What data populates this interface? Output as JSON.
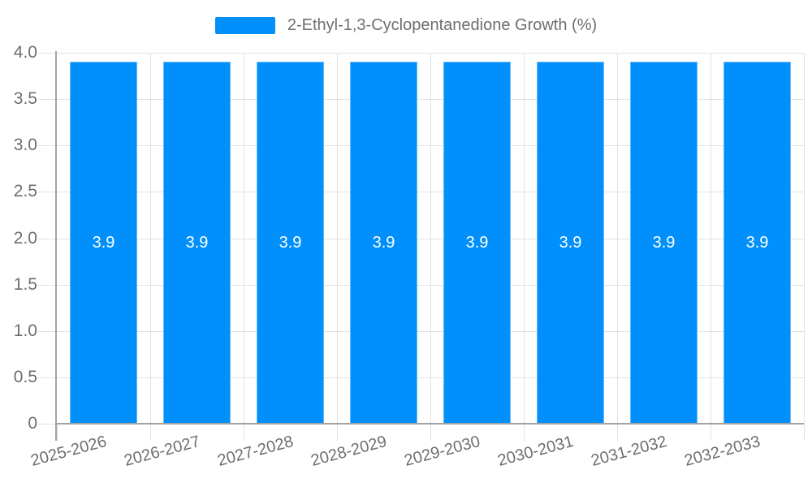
{
  "legend": {
    "label": "2-Ethyl-1,3-Cyclopentanedione Growth (%)",
    "swatch_color": "#008ffb"
  },
  "chart_data": {
    "type": "bar",
    "title": "2-Ethyl-1,3-Cyclopentanedione Growth (%)",
    "categories": [
      "2025-2026",
      "2026-2027",
      "2027-2028",
      "2028-2029",
      "2029-2030",
      "2030-2031",
      "2031-2032",
      "2032-2033"
    ],
    "series": [
      {
        "name": "2-Ethyl-1,3-Cyclopentanedione Growth (%)",
        "values": [
          3.9,
          3.9,
          3.9,
          3.9,
          3.9,
          3.9,
          3.9,
          3.9
        ]
      }
    ],
    "value_labels": [
      "3.9",
      "3.9",
      "3.9",
      "3.9",
      "3.9",
      "3.9",
      "3.9",
      "3.9"
    ],
    "xlabel": "",
    "ylabel": "",
    "ylim": [
      0,
      4
    ],
    "ytick_labels": [
      "4.0",
      "3.5",
      "3.0",
      "2.5",
      "2.0",
      "1.5",
      "1.0",
      "0.5",
      "0"
    ],
    "grid": true,
    "legend_position": "top",
    "colors": {
      "bar": "#008ffb",
      "bar_label": "#ffffff",
      "axis_label": "#6e6e6e",
      "gridline": "#e1e1e1",
      "axis_line": "#a3a3a3"
    }
  }
}
